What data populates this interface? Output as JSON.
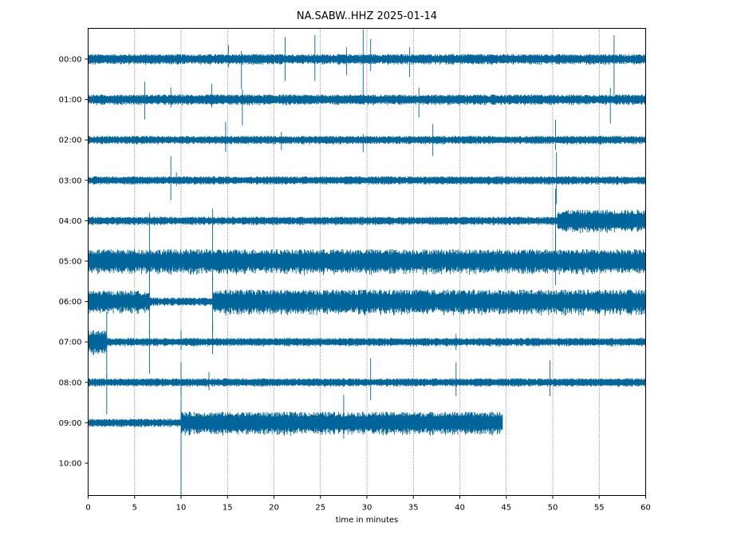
{
  "chart_data": {
    "type": "line",
    "title": "NA.SABW..HHZ 2025-01-14",
    "xlabel": "time in minutes",
    "ylabel": "",
    "xlim": [
      0,
      60
    ],
    "x_ticks": [
      0,
      5,
      10,
      15,
      20,
      25,
      30,
      35,
      40,
      45,
      50,
      55,
      60
    ],
    "x_tick_labels": [
      "0",
      "5",
      "10",
      "15",
      "20",
      "25",
      "30",
      "35",
      "40",
      "45",
      "50",
      "55",
      "60"
    ],
    "grid": "vertical dotted at x ticks",
    "trace_color": "#00659a",
    "rows": [
      {
        "label": "00:00",
        "start": 0,
        "end": 60,
        "segments": [
          {
            "from": 0,
            "to": 60,
            "amp": 0.25
          }
        ],
        "spikes": [
          {
            "t": 15.1,
            "up": 0.35,
            "down": 0.2
          },
          {
            "t": 16.5,
            "up": 0.2,
            "down": 0.75
          },
          {
            "t": 21.2,
            "up": 0.55,
            "down": 0.55
          },
          {
            "t": 24.4,
            "up": 0.6,
            "down": 0.55
          },
          {
            "t": 27.8,
            "up": 0.3,
            "down": 0.4
          },
          {
            "t": 29.6,
            "up": 0.75,
            "down": 0.9
          },
          {
            "t": 30.4,
            "up": 0.5,
            "down": 0.3
          },
          {
            "t": 34.6,
            "up": 0.3,
            "down": 0.45
          },
          {
            "t": 56.6,
            "up": 0.6,
            "down": 0.9
          }
        ]
      },
      {
        "label": "01:00",
        "start": 0,
        "end": 60,
        "segments": [
          {
            "from": 0,
            "to": 60,
            "amp": 0.25
          }
        ],
        "spikes": [
          {
            "t": 6.1,
            "up": 0.45,
            "down": 0.5
          },
          {
            "t": 8.9,
            "up": 0.3,
            "down": 0.2
          },
          {
            "t": 13.3,
            "up": 0.4,
            "down": 0.2
          },
          {
            "t": 16.6,
            "up": 0.25,
            "down": 0.65
          },
          {
            "t": 35.6,
            "up": 0.3,
            "down": 0.45
          },
          {
            "t": 56.2,
            "up": 0.3,
            "down": 0.6
          }
        ]
      },
      {
        "label": "02:00",
        "start": 0,
        "end": 60,
        "segments": [
          {
            "from": 0,
            "to": 60,
            "amp": 0.2
          }
        ],
        "spikes": [
          {
            "t": 14.8,
            "up": 0.45,
            "down": 0.3
          },
          {
            "t": 20.8,
            "up": 0.2,
            "down": 0.25
          },
          {
            "t": 29.6,
            "up": 0.15,
            "down": 0.3
          },
          {
            "t": 37.1,
            "up": 0.4,
            "down": 0.4
          },
          {
            "t": 50.3,
            "up": 0.5,
            "down": 0.25
          }
        ]
      },
      {
        "label": "03:00",
        "start": 0,
        "end": 60,
        "segments": [
          {
            "from": 0,
            "to": 60,
            "amp": 0.2
          }
        ],
        "spikes": [
          {
            "t": 8.9,
            "up": 0.6,
            "down": 0.5
          },
          {
            "t": 9.5,
            "up": 0.2,
            "down": 0.15
          },
          {
            "t": 50.4,
            "up": 0.7,
            "down": 0.6
          }
        ]
      },
      {
        "label": "04:00",
        "start": 0,
        "end": 60,
        "segments": [
          {
            "from": 0,
            "to": 50.5,
            "amp": 0.2
          },
          {
            "from": 50.5,
            "to": 60,
            "amp": 0.55
          }
        ],
        "spikes": [
          {
            "t": 6.6,
            "up": 0.2,
            "down": 0.15
          },
          {
            "t": 13.4,
            "up": 0.3,
            "down": 0.2
          },
          {
            "t": 50.3,
            "up": 0.8,
            "down": 0.7
          }
        ]
      },
      {
        "label": "05:00",
        "start": 0,
        "end": 60,
        "segments": [
          {
            "from": 0,
            "to": 60,
            "amp": 0.6
          }
        ],
        "spikes": [
          {
            "t": 6.6,
            "up": 0.9,
            "down": 0.5
          },
          {
            "t": 13.4,
            "up": 0.9,
            "down": 0.5
          },
          {
            "t": 50.3,
            "up": 0.7,
            "down": 0.6
          }
        ]
      },
      {
        "label": "06:00",
        "start": 0,
        "end": 60,
        "segments": [
          {
            "from": 0,
            "to": 6.6,
            "amp": 0.55
          },
          {
            "from": 6.6,
            "to": 13.4,
            "amp": 0.2
          },
          {
            "from": 13.4,
            "to": 60,
            "amp": 0.6
          }
        ],
        "spikes": [
          {
            "t": 6.6,
            "up": 0.7,
            "down": 0.8
          },
          {
            "t": 13.4,
            "up": 0.7,
            "down": 0.8
          }
        ]
      },
      {
        "label": "07:00",
        "start": 0,
        "end": 60,
        "segments": [
          {
            "from": 0,
            "to": 2.0,
            "amp": 0.6
          },
          {
            "from": 2.0,
            "to": 60,
            "amp": 0.2
          }
        ],
        "spikes": [
          {
            "t": 2.0,
            "up": 0.75,
            "down": 0.9
          },
          {
            "t": 6.6,
            "up": 0.3,
            "down": 0.8
          },
          {
            "t": 10.0,
            "up": 0.3,
            "down": 0.2
          },
          {
            "t": 13.4,
            "up": 0.5,
            "down": 0.3
          },
          {
            "t": 39.6,
            "up": 0.2,
            "down": 0.2
          }
        ]
      },
      {
        "label": "08:00",
        "start": 0,
        "end": 60,
        "segments": [
          {
            "from": 0,
            "to": 60,
            "amp": 0.2
          }
        ],
        "spikes": [
          {
            "t": 2.0,
            "up": 0.2,
            "down": 0.8
          },
          {
            "t": 10.0,
            "up": 0.5,
            "down": 0.4
          },
          {
            "t": 13.0,
            "up": 0.25,
            "down": 0.2
          },
          {
            "t": 30.4,
            "up": 0.6,
            "down": 0.45
          },
          {
            "t": 39.6,
            "up": 0.5,
            "down": 0.35
          },
          {
            "t": 49.7,
            "up": 0.55,
            "down": 0.35
          }
        ]
      },
      {
        "label": "09:00",
        "start": 0,
        "end": 44.6,
        "segments": [
          {
            "from": 0,
            "to": 10.0,
            "amp": 0.2
          },
          {
            "from": 10.0,
            "to": 44.6,
            "amp": 0.55
          }
        ],
        "spikes": [
          {
            "t": 10.0,
            "up": 0.6,
            "down": 1.9
          },
          {
            "t": 27.5,
            "up": 0.7,
            "down": 0.4
          }
        ]
      },
      {
        "label": "10:00",
        "start": 0,
        "end": 0,
        "segments": [],
        "spikes": []
      }
    ]
  }
}
